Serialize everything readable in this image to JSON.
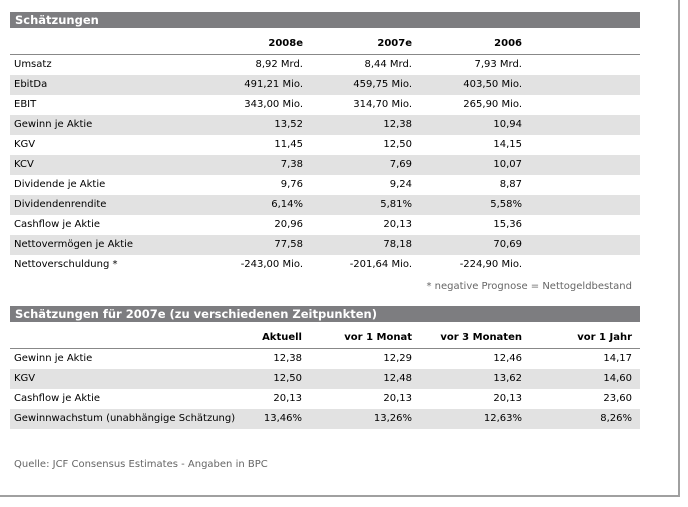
{
  "tables": [
    {
      "title": "Schätzungen",
      "columns": [
        "2008e",
        "2007e",
        "2006"
      ],
      "rows": [
        [
          "Umsatz",
          "8,92 Mrd.",
          "8,44 Mrd.",
          "7,93 Mrd."
        ],
        [
          "EbitDa",
          "491,21 Mio.",
          "459,75 Mio.",
          "403,50 Mio."
        ],
        [
          "EBIT",
          "343,00 Mio.",
          "314,70 Mio.",
          "265,90 Mio."
        ],
        [
          "Gewinn je Aktie",
          "13,52",
          "12,38",
          "10,94"
        ],
        [
          "KGV",
          "11,45",
          "12,50",
          "14,15"
        ],
        [
          "KCV",
          "7,38",
          "7,69",
          "10,07"
        ],
        [
          "Dividende je Aktie",
          "9,76",
          "9,24",
          "8,87"
        ],
        [
          "Dividendenrendite",
          "6,14%",
          "5,81%",
          "5,58%"
        ],
        [
          "Cashflow je Aktie",
          "20,96",
          "20,13",
          "15,36"
        ],
        [
          "Nettovermögen je Aktie",
          "77,58",
          "78,18",
          "70,69"
        ],
        [
          "Nettoverschuldung *",
          "-243,00 Mio.",
          "-201,64 Mio.",
          "-224,90 Mio."
        ]
      ],
      "note": "* negative Prognose = Nettogeldbestand"
    },
    {
      "title": "Schätzungen für 2007e (zu verschiedenen Zeitpunkten)",
      "columns": [
        "Aktuell",
        "vor 1 Monat",
        "vor 3 Monaten",
        "vor 1 Jahr"
      ],
      "rows": [
        [
          "Gewinn je Aktie",
          "12,38",
          "12,29",
          "12,46",
          "14,17"
        ],
        [
          "KGV",
          "12,50",
          "12,48",
          "13,62",
          "14,60"
        ],
        [
          "Cashflow je Aktie",
          "20,13",
          "20,13",
          "20,13",
          "23,60"
        ],
        [
          "Gewinnwachstum (unabhängige Schätzung)",
          "13,46%",
          "13,26%",
          "12,63%",
          "8,26%"
        ]
      ]
    }
  ],
  "source": "Quelle: JCF Consensus Estimates - Angaben in BPC"
}
